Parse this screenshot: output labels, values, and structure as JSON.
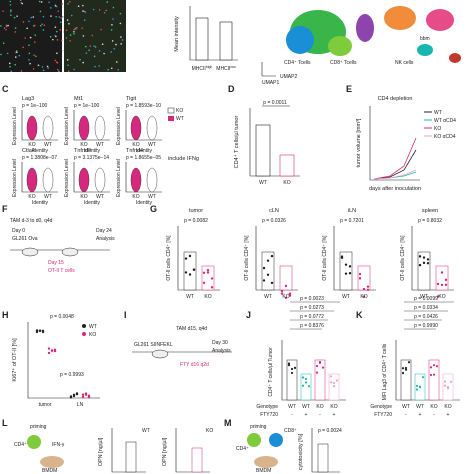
{
  "labels": [
    "C",
    "D",
    "E",
    "F",
    "G",
    "H",
    "I",
    "J",
    "K",
    "L",
    "M"
  ],
  "panel_b": {
    "ylabel": "Mean intensity",
    "x": [
      {
        "base": "MHCII",
        "sup": "high"
      },
      {
        "base": "MHCII",
        "sup": "low"
      }
    ]
  },
  "umap": {
    "clusters": [
      "CD4⁺ Tcells",
      "CD8⁺ Tcells",
      "NK cells",
      "bbm"
    ],
    "x": "UMAP1",
    "y": "UMAP2"
  },
  "panel_c": {
    "genes": [
      {
        "name": "Lag3",
        "p": "p = 1e−100"
      },
      {
        "name": "Mt1",
        "p": "p = 1e−100"
      },
      {
        "name": "Tigit",
        "p": "p = 1.8593e−10"
      },
      {
        "name": "Ctla4",
        "p": "p = 1.3808e−07"
      },
      {
        "name": "Tnfrsf9",
        "p": "p = 3.1375e−14"
      },
      {
        "name": "Tnfrsf4",
        "p": "p = 1.8655e−05"
      }
    ],
    "ylabel": "Expression Level",
    "xlabel": "Identity",
    "groups": [
      "KO",
      "WT"
    ],
    "note": "include IFNg"
  },
  "panel_d": {
    "ylabel": "CD4⁺ T cells/µl tumor",
    "p": "p = 0.0011",
    "x": [
      "WT",
      "KO"
    ]
  },
  "panel_e": {
    "title": "CD4 depletion",
    "ylabel": "tumor volume [mm³]",
    "xlabel": "days after inoculation",
    "legend": [
      "WT",
      "WT αCD4",
      "KO",
      "KO αCD4"
    ]
  },
  "panel_f": {
    "lines": [
      "TAM d-3 to d0, q4d",
      "Day 0",
      "GL261 Ova",
      "Day 24",
      "Analysis",
      "Day 15",
      "OT-II T cells"
    ]
  },
  "panel_g": {
    "ylabel": "OT-II cells CD4⁺ [%]",
    "plots": [
      {
        "title": "tumor",
        "p": "p = 0.0082"
      },
      {
        "title": "cLN",
        "p": "p = 0.0326"
      },
      {
        "title": "iLN",
        "p": "p = 0.7201"
      },
      {
        "title": "spleen",
        "p": "p = 0.8032"
      }
    ],
    "x": [
      "WT",
      "KO"
    ]
  },
  "panel_h": {
    "ylabel": "Ki67⁺ of OT-II [%]",
    "p": [
      "p = 0.0048",
      "p = 0.9993"
    ],
    "x": [
      "tumor",
      "LN"
    ],
    "legend": [
      "WT",
      "KO"
    ]
  },
  "panel_i": {
    "lines": [
      "TAM d15, q4d",
      "GL261 SIINFEKL",
      "Day 30",
      "Analysis",
      "FTY d16 q2d"
    ]
  },
  "panel_j": {
    "ylabel": "CD4⁺ T cells/µl Tumor",
    "p": [
      "p = 0.0023",
      "p = 0.0273",
      "p = 0.0772",
      "p = 0.8376"
    ],
    "rows": [
      "Genotype",
      "FTY720"
    ],
    "genotype": [
      "WT",
      "WT",
      "KO",
      "KO"
    ],
    "fty": [
      "-",
      "+",
      "-",
      "+"
    ]
  },
  "panel_k": {
    "ylabel": "MFI Lag3 of CD4⁺ T cells",
    "p": [
      "p = 0.0099",
      "p = 0.0334",
      "p = 0.0426",
      "p = 0.9990"
    ]
  },
  "panel_l": {
    "texts": [
      "priming",
      "CD4⁺",
      "IFN-γ",
      "BMDM"
    ],
    "ylabel": "OPN [ng/µl]",
    "titles": [
      "WT",
      "KO"
    ]
  },
  "panel_m": {
    "texts": [
      "priming",
      "CD4⁺",
      "CD8⁺",
      "BMDM"
    ],
    "ylabel": "cytotoxicity [%]",
    "p": "p = 0.0024"
  }
}
